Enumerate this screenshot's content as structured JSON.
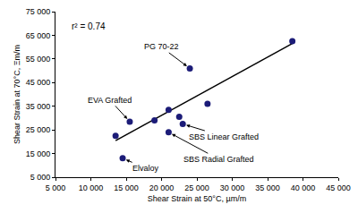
{
  "chart_data": {
    "type": "scatter",
    "x_label": "Shear Strain at 50°C, µm/m",
    "y_label": "Shear Strain at 70°C, Ξm/m",
    "x": [
      13500,
      14500,
      15500,
      19000,
      21000,
      21000,
      22500,
      23000,
      24000,
      26500,
      38500
    ],
    "values": [
      22500,
      13000,
      28500,
      29000,
      33500,
      24000,
      30500,
      27500,
      51000,
      36000,
      62500
    ],
    "color": "#1c1c78",
    "marker": "circle",
    "trendline": {
      "x": [
        13500,
        38500
      ],
      "values": [
        20500,
        61500
      ],
      "color": "#000000",
      "line_style": "solid"
    },
    "annotations": [
      {
        "text": "r² = 0.74"
      },
      {
        "text": "PG 70-22",
        "x": 24000,
        "y": 51000
      },
      {
        "text": "EVA Grafted",
        "x": 15500,
        "y": 28500
      },
      {
        "text": "SBS Linear Grafted",
        "x": 23000,
        "y": 27500
      },
      {
        "text": "SBS Radial Grafted",
        "x": 21000,
        "y": 24000
      },
      {
        "text": "Elvaloy",
        "x": 14500,
        "y": 13000
      }
    ],
    "xlim": [
      5000,
      45000
    ],
    "xticks": [
      {
        "value": 5000,
        "label": "5 000"
      },
      {
        "value": 10000,
        "label": "10 000"
      },
      {
        "value": 15000,
        "label": "15 000"
      },
      {
        "value": 20000,
        "label": "20 000"
      },
      {
        "value": 25000,
        "label": "25 000"
      },
      {
        "value": 30000,
        "label": "30 000"
      },
      {
        "value": 35000,
        "label": "35 000"
      },
      {
        "value": 40000,
        "label": "40 000"
      },
      {
        "value": 45000,
        "label": "45 000"
      }
    ],
    "ylim": [
      5000,
      75000
    ],
    "yticks": [
      {
        "value": 5000,
        "label": "5 000"
      },
      {
        "value": 15000,
        "label": "15 000"
      },
      {
        "value": 25000,
        "label": "25 000"
      },
      {
        "value": 35000,
        "label": "35 000"
      },
      {
        "value": 45000,
        "label": "45 000"
      },
      {
        "value": 55000,
        "label": "55 000"
      },
      {
        "value": 65000,
        "label": "65 000"
      },
      {
        "value": 75000,
        "label": "75 000"
      }
    ],
    "grid": false
  }
}
